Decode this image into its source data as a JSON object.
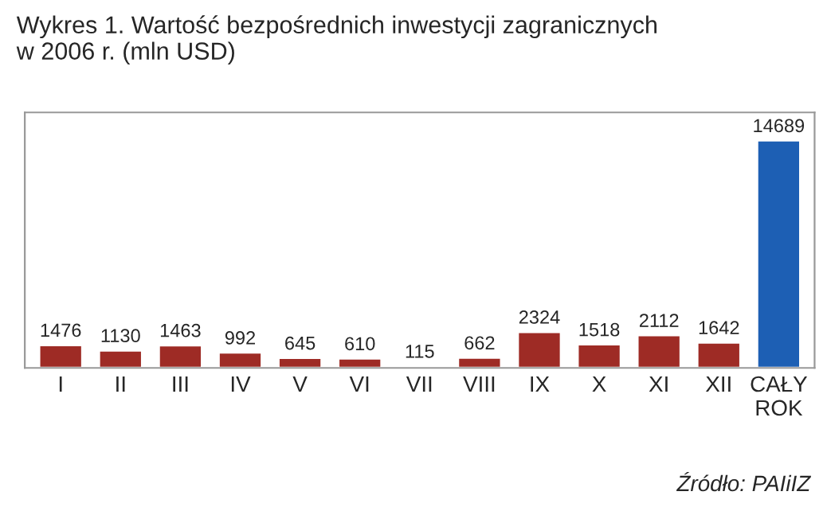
{
  "chart_data": {
    "type": "bar",
    "title": "Wykres 1. Wartość bezpośrednich inwestycji zagranicznych\nw 2006 r. (mln USD)",
    "categories": [
      "I",
      "II",
      "III",
      "IV",
      "V",
      "VI",
      "VII",
      "VIII",
      "IX",
      "X",
      "XI",
      "XII",
      "CAŁY\nROK"
    ],
    "values": [
      1476,
      1130,
      1463,
      992,
      645,
      610,
      115,
      662,
      2324,
      1518,
      2112,
      1642,
      14689
    ],
    "colors": [
      "#9e2b25",
      "#9e2b25",
      "#9e2b25",
      "#9e2b25",
      "#9e2b25",
      "#9e2b25",
      "#9e2b25",
      "#9e2b25",
      "#9e2b25",
      "#9e2b25",
      "#9e2b25",
      "#9e2b25",
      "#1d5fb4"
    ],
    "ylim": [
      0,
      16500
    ],
    "tick_labels": "x",
    "data_labels": true,
    "grid": false,
    "legend": false,
    "annotations": [
      "Źródło: PAIiIZ"
    ]
  }
}
